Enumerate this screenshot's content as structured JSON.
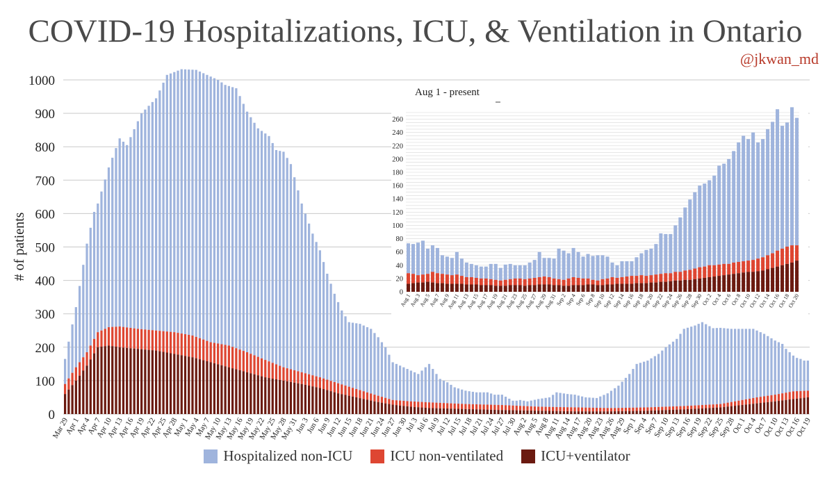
{
  "title": "COVID-19 Hospitalizations, ICU, & Ventilation in Ontario",
  "handle": "@jkwan_md",
  "colors": {
    "hosp": "#9fb4dd",
    "icu": "#de4632",
    "vent": "#6b1a10",
    "grid": "#c9c9c9"
  },
  "legend": [
    {
      "label": "Hospitalized non-ICU",
      "color": "#9fb4dd"
    },
    {
      "label": "ICU non-ventilated",
      "color": "#de4632"
    },
    {
      "label": "ICU+ventilator",
      "color": "#6b1a10"
    }
  ],
  "chart_data": [
    {
      "type": "bar",
      "stacked": true,
      "ylabel": "# of patients",
      "ylim": [
        0,
        1000
      ],
      "yticks": [
        0,
        100,
        200,
        300,
        400,
        500,
        600,
        700,
        800,
        900,
        1000
      ],
      "start_date": "Mar 29",
      "n_days": 205,
      "xtick_labels": [
        "Mar 29",
        "Apr 1",
        "Apr 4",
        "Apr 7",
        "Apr 10",
        "Apr 13",
        "Apr 16",
        "Apr 19",
        "Apr 22",
        "Apr 25",
        "Apr 28",
        "May 1",
        "May 4",
        "May 7",
        "May 10",
        "May 13",
        "May 16",
        "May 19",
        "May 22",
        "May 25",
        "May 28",
        "May 31",
        "Jun 3",
        "Jun 6",
        "Jun 9",
        "Jun 12",
        "Jun 15",
        "Jun 18",
        "Jun 21",
        "Jun 24",
        "Jun 27",
        "Jun 30",
        "Jul 3",
        "Jul 6",
        "Jul 9",
        "Jul 12",
        "Jul 15",
        "Jul 18",
        "Jul 21",
        "Jul 24",
        "Jul 27",
        "Jul 30",
        "Aug 2",
        "Aug 5",
        "Aug 8",
        "Aug 11",
        "Aug 14",
        "Aug 17",
        "Aug 20",
        "Aug 23",
        "Aug 26",
        "Aug 29",
        "Sep 1",
        "Sep 4",
        "Sep 7",
        "Sep 10",
        "Sep 13",
        "Sep 16",
        "Sep 19",
        "Sep 22",
        "Sep 25",
        "Sep 28",
        "Oct 1",
        "Oct 4",
        "Oct 7",
        "Oct 10",
        "Oct 13",
        "Oct 16",
        "Oct 19"
      ],
      "series_total_keypoints": {
        "name": "Total hospitalized",
        "day_index": [
          0,
          3,
          6,
          8,
          9,
          12,
          15,
          17,
          21,
          25,
          28,
          32,
          36,
          38,
          42,
          44,
          47,
          50,
          53,
          56,
          58,
          60,
          62,
          65,
          66,
          68,
          70,
          72,
          74,
          76,
          78,
          81,
          84,
          86,
          88,
          90,
          92,
          93,
          95,
          97,
          100,
          103,
          105,
          107,
          110,
          113,
          116,
          118,
          120,
          123,
          124,
          125,
          127,
          130,
          133,
          135,
          138,
          140,
          143,
          146,
          149,
          152,
          155,
          157,
          160,
          163,
          165,
          168,
          170,
          173,
          175,
          178,
          180,
          183,
          186,
          189,
          192,
          195,
          197,
          198,
          199,
          200,
          201,
          202,
          203,
          204
        ],
        "values": [
          165,
          320,
          510,
          605,
          630,
          738,
          825,
          805,
          900,
          945,
          1015,
          1032,
          1030,
          1020,
          1000,
          985,
          975,
          905,
          855,
          832,
          790,
          785,
          748,
          630,
          600,
          540,
          490,
          420,
          360,
          310,
          275,
          270,
          255,
          230,
          200,
          155,
          145,
          140,
          130,
          120,
          150,
          105,
          95,
          80,
          70,
          65,
          65,
          58,
          58,
          40,
          40,
          42,
          38,
          45,
          50,
          65,
          60,
          58,
          50,
          48,
          62,
          85,
          120,
          150,
          160,
          180,
          200,
          225,
          255,
          265,
          275,
          257,
          258,
          255,
          255,
          255,
          240,
          220,
          210,
          195,
          185,
          175,
          168,
          165,
          160,
          160
        ]
      },
      "series_icu_keypoints": {
        "name": "ICU (non-ventilated + ventilator)",
        "day_index": [
          0,
          3,
          6,
          9,
          12,
          15,
          20,
          25,
          30,
          35,
          40,
          45,
          50,
          55,
          60,
          65,
          70,
          75,
          80,
          85,
          90,
          95,
          100,
          110,
          120,
          130,
          140,
          150,
          160,
          170,
          180,
          185,
          190,
          195,
          200,
          204
        ],
        "values": [
          90,
          140,
          185,
          245,
          260,
          262,
          255,
          250,
          245,
          235,
          215,
          205,
          185,
          162,
          140,
          125,
          110,
          92,
          75,
          58,
          42,
          38,
          35,
          30,
          27,
          22,
          20,
          18,
          20,
          24,
          30,
          40,
          50,
          58,
          68,
          70
        ]
      },
      "series_vent_keypoints": {
        "name": "ICU+ventilator",
        "day_index": [
          0,
          3,
          6,
          9,
          12,
          15,
          20,
          25,
          30,
          35,
          40,
          45,
          50,
          55,
          60,
          65,
          70,
          75,
          80,
          85,
          90,
          95,
          100,
          110,
          120,
          130,
          140,
          150,
          160,
          170,
          180,
          185,
          190,
          195,
          200,
          204
        ],
        "values": [
          60,
          100,
          145,
          200,
          205,
          200,
          195,
          190,
          180,
          170,
          155,
          140,
          125,
          110,
          100,
          90,
          78,
          62,
          50,
          38,
          28,
          22,
          18,
          15,
          12,
          10,
          8,
          8,
          10,
          14,
          20,
          26,
          32,
          38,
          45,
          50
        ]
      }
    },
    {
      "type": "bar",
      "stacked": true,
      "title": "Aug 1 - present",
      "ylim": [
        0,
        270
      ],
      "yticks": [
        0,
        20,
        40,
        60,
        80,
        100,
        120,
        140,
        160,
        180,
        200,
        220,
        240,
        260
      ],
      "xtick_labels": [
        "Aug 1",
        "Aug 3",
        "Aug 5",
        "Aug 7",
        "Aug 9",
        "Aug 11",
        "Aug 13",
        "Aug 15",
        "Aug 17",
        "Aug 19",
        "Aug 21",
        "Aug 23",
        "Aug 25",
        "Aug 27",
        "Aug 29",
        "Aug 31",
        "Sep 2",
        "Sep 4",
        "Sep 6",
        "Sep 8",
        "Sep 10",
        "Sep 12",
        "Sep 14",
        "Sep 16",
        "Sep 18",
        "Sep 20",
        "Sep 22",
        "Sep 24",
        "Sep 26",
        "Sep 28",
        "Sep 30",
        "Oct 2",
        "Oct 4",
        "Oct 6",
        "Oct 8",
        "Oct 10",
        "Oct 12",
        "Oct 14",
        "Oct 16",
        "Oct 18",
        "Oct 20"
      ],
      "total": [
        73,
        72,
        74,
        77,
        65,
        70,
        66,
        55,
        53,
        51,
        60,
        50,
        44,
        42,
        40,
        38,
        38,
        42,
        42,
        36,
        41,
        42,
        40,
        40,
        40,
        44,
        48,
        60,
        51,
        51,
        50,
        65,
        62,
        58,
        66,
        60,
        53,
        57,
        54,
        55,
        55,
        53,
        44,
        40,
        46,
        46,
        46,
        52,
        58,
        63,
        65,
        72,
        88,
        87,
        87,
        100,
        112,
        127,
        139,
        150,
        160,
        163,
        168,
        175,
        190,
        193,
        200,
        212,
        225,
        235,
        230,
        240,
        225,
        230,
        245,
        256,
        275,
        250,
        255,
        278,
        262
      ],
      "icu": [
        28,
        27,
        25,
        26,
        27,
        30,
        28,
        27,
        26,
        25,
        26,
        24,
        22,
        22,
        21,
        20,
        20,
        19,
        18,
        17,
        18,
        19,
        20,
        20,
        19,
        20,
        21,
        22,
        23,
        22,
        20,
        19,
        18,
        20,
        22,
        21,
        20,
        20,
        18,
        17,
        19,
        20,
        22,
        21,
        22,
        23,
        24,
        24,
        25,
        24,
        25,
        26,
        27,
        28,
        28,
        30,
        30,
        32,
        33,
        35,
        37,
        38,
        40,
        40,
        41,
        42,
        42,
        44,
        45,
        46,
        47,
        48,
        50,
        52,
        55,
        58,
        62,
        65,
        68,
        70,
        70
      ],
      "vent": [
        12,
        13,
        14,
        14,
        15,
        14,
        13,
        13,
        12,
        12,
        12,
        12,
        11,
        11,
        11,
        10,
        10,
        10,
        9,
        9,
        9,
        10,
        10,
        10,
        9,
        10,
        10,
        11,
        11,
        11,
        10,
        10,
        9,
        9,
        10,
        10,
        10,
        11,
        11,
        10,
        10,
        11,
        11,
        12,
        12,
        12,
        12,
        13,
        13,
        13,
        14,
        14,
        15,
        15,
        16,
        17,
        17,
        18,
        18,
        19,
        20,
        21,
        22,
        23,
        24,
        25,
        26,
        27,
        28,
        29,
        30,
        30,
        31,
        32,
        34,
        36,
        38,
        40,
        42,
        44,
        47
      ]
    }
  ]
}
